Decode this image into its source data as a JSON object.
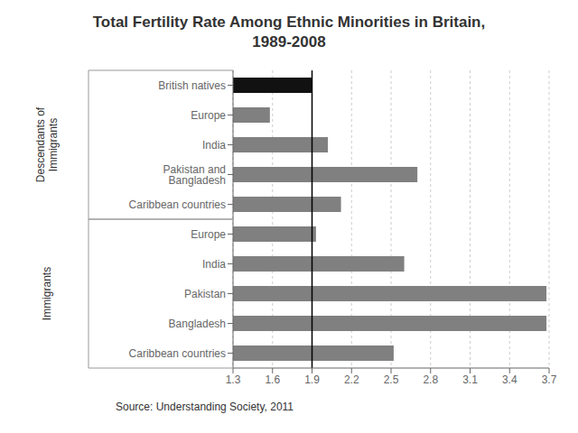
{
  "chart_data": {
    "type": "bar",
    "orientation": "horizontal",
    "title": "Total Fertility Rate Among Ethnic Minorities in Britain,\n1989-2008",
    "categories": [
      "British natives",
      "Europe",
      "India",
      "Pakistan and Bangladesh",
      "Caribbean countries",
      "Europe",
      "India",
      "Pakistan",
      "Bangladesh",
      "Caribbean countries"
    ],
    "values": [
      1.9,
      1.58,
      2.02,
      2.7,
      2.12,
      1.93,
      2.6,
      3.68,
      3.68,
      2.52
    ],
    "colors": [
      "#111111",
      "#808080",
      "#808080",
      "#808080",
      "#808080",
      "#808080",
      "#808080",
      "#808080",
      "#808080",
      "#808080"
    ],
    "xlim": [
      1.3,
      3.7
    ],
    "xticks": [
      1.3,
      1.6,
      1.9,
      2.2,
      2.5,
      2.8,
      3.1,
      3.4,
      3.7
    ],
    "grid": true,
    "reference_line": 1.9,
    "group_labels": [
      "Descendants of\nImmigrants",
      "Immigrants"
    ],
    "source": "Source: Understanding Society, 2011"
  }
}
